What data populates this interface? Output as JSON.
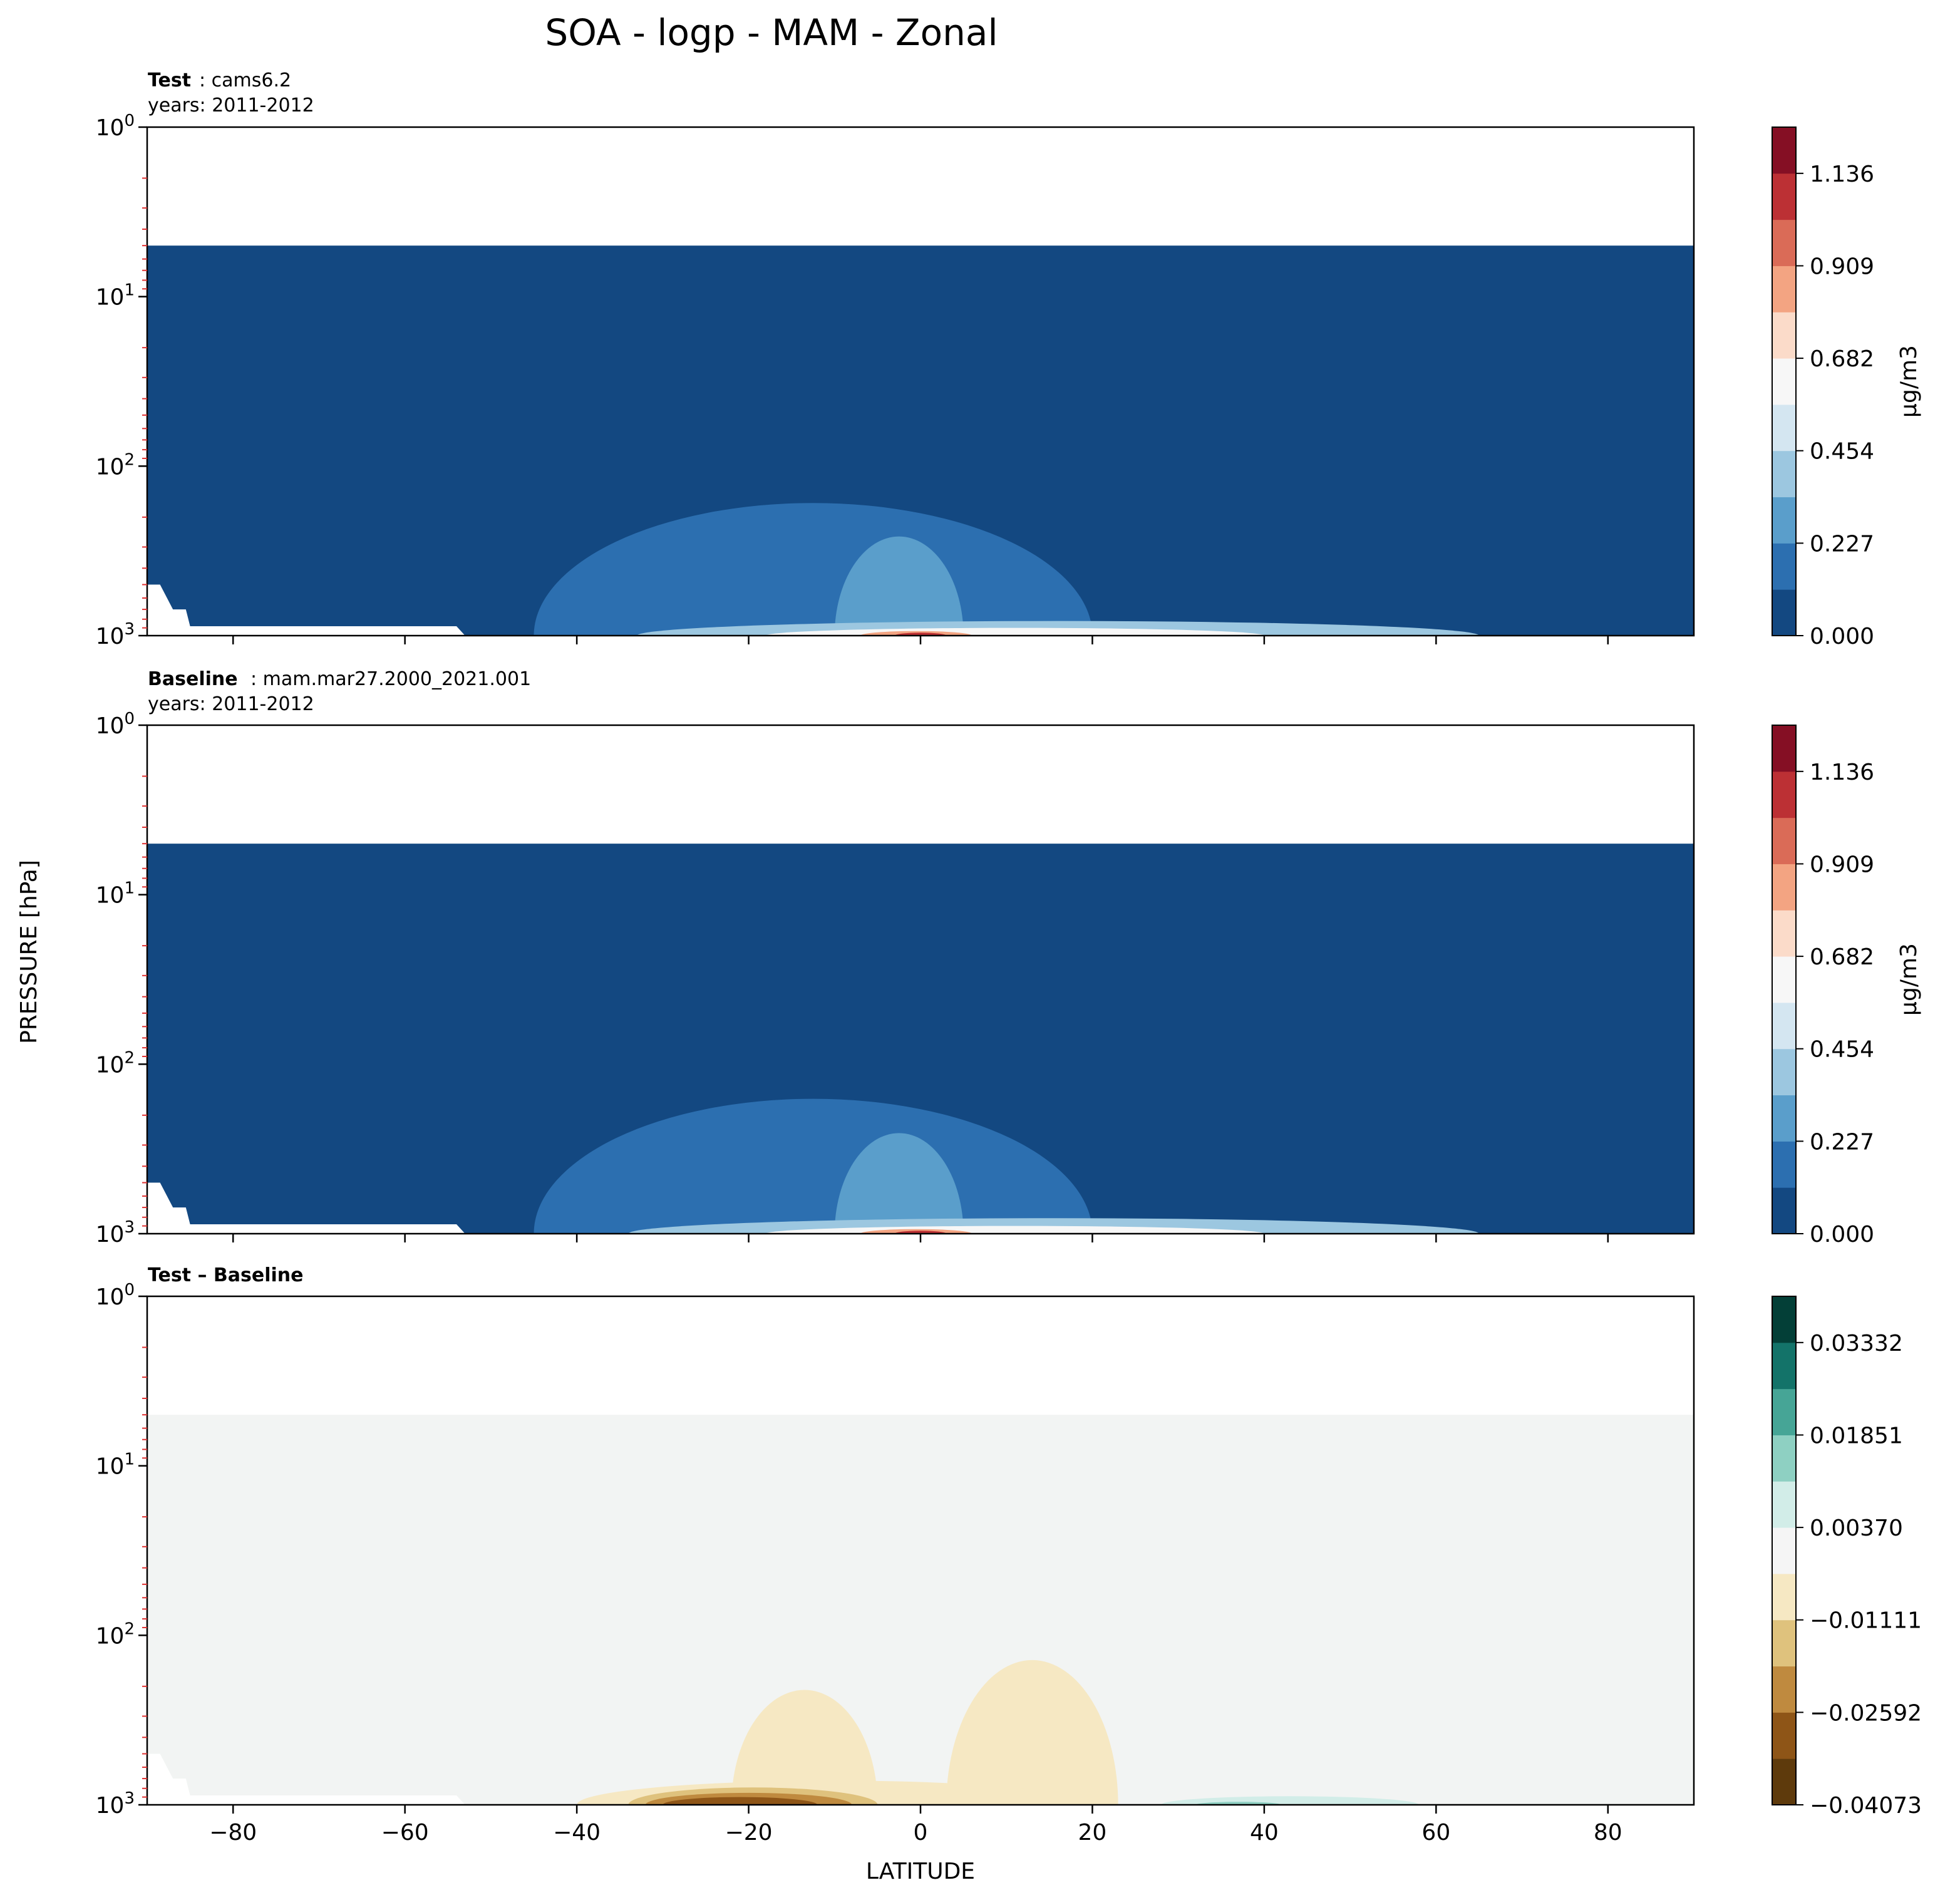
{
  "figure": {
    "title": "SOA - logp - MAM - Zonal",
    "ylabel": "PRESSURE [hPa]",
    "xlabel": "LATITUDE"
  },
  "chart_data": [
    {
      "type": "heatmap",
      "panel": "test",
      "title_bold": "Test",
      "title_rest": ": cams6.2",
      "subtitle": "years: 2011-2012",
      "xlim": [
        -90,
        90
      ],
      "ylim": [
        1000,
        1
      ],
      "yscale": "log",
      "y_tick_labels": [
        "10^0",
        "10^1",
        "10^2",
        "10^3"
      ],
      "x_ticks": [
        -80,
        -60,
        -40,
        -20,
        0,
        20,
        40,
        60,
        80
      ],
      "x_tick_labels_shown": false,
      "data_top_hPa": 5,
      "colorbar": {
        "label": "μg/m3",
        "ticks": [
          "0.000",
          "0.227",
          "0.454",
          "0.682",
          "0.909",
          "1.136"
        ],
        "colors": [
          "#134881",
          "#2c6fb0",
          "#5a9ecb",
          "#9cc7e0",
          "#d4e6f1",
          "#f7f7f7",
          "#fbdbc9",
          "#f3a482",
          "#da6b57",
          "#bc3034",
          "#850f24"
        ]
      },
      "regions": [
        {
          "level": 1,
          "lat_range": [
            -45,
            20
          ],
          "top_hPa": 165,
          "note": "broad plume"
        },
        {
          "level": 2,
          "lat_range": [
            -10,
            5
          ],
          "top_hPa": 260
        },
        {
          "level": 3,
          "lat_range": [
            -33,
            65
          ],
          "top_hPa": 820
        },
        {
          "level": 5,
          "lat_range": [
            -18,
            40
          ],
          "top_hPa": 900
        },
        {
          "level": 7,
          "lat_range": [
            -7,
            6
          ],
          "top_hPa": 940
        },
        {
          "level": 9,
          "lat_range": [
            -3,
            3
          ],
          "top_hPa": 960,
          "note": "peak ~1.1 near equator"
        }
      ]
    },
    {
      "type": "heatmap",
      "panel": "baseline",
      "title_bold": "Baseline",
      "title_rest": ": mam.mar27.2000_2021.001",
      "subtitle": "years: 2011-2012",
      "xlim": [
        -90,
        90
      ],
      "ylim": [
        1000,
        1
      ],
      "yscale": "log",
      "y_tick_labels": [
        "10^0",
        "10^1",
        "10^2",
        "10^3"
      ],
      "x_ticks": [
        -80,
        -60,
        -40,
        -20,
        0,
        20,
        40,
        60,
        80
      ],
      "x_tick_labels_shown": false,
      "data_top_hPa": 5,
      "colorbar": {
        "label": "μg/m3",
        "ticks": [
          "0.000",
          "0.227",
          "0.454",
          "0.682",
          "0.909",
          "1.136"
        ],
        "colors": [
          "#134881",
          "#2c6fb0",
          "#5a9ecb",
          "#9cc7e0",
          "#d4e6f1",
          "#f7f7f7",
          "#fbdbc9",
          "#f3a482",
          "#da6b57",
          "#bc3034",
          "#850f24"
        ]
      },
      "regions": [
        {
          "level": 1,
          "lat_range": [
            -45,
            20
          ],
          "top_hPa": 160
        },
        {
          "level": 2,
          "lat_range": [
            -10,
            5
          ],
          "top_hPa": 255
        },
        {
          "level": 3,
          "lat_range": [
            -34,
            65
          ],
          "top_hPa": 810
        },
        {
          "level": 5,
          "lat_range": [
            -18,
            40
          ],
          "top_hPa": 900
        },
        {
          "level": 7,
          "lat_range": [
            -7,
            6
          ],
          "top_hPa": 940
        },
        {
          "level": 9,
          "lat_range": [
            -3,
            3
          ],
          "top_hPa": 960
        }
      ]
    },
    {
      "type": "heatmap",
      "panel": "difference",
      "title_bold": "Test – Baseline",
      "xlim": [
        -90,
        90
      ],
      "ylim": [
        1000,
        1
      ],
      "yscale": "log",
      "y_tick_labels": [
        "10^0",
        "10^1",
        "10^2",
        "10^3"
      ],
      "x_ticks": [
        -80,
        -60,
        -40,
        -20,
        0,
        20,
        40,
        60,
        80
      ],
      "x_tick_labels": [
        "−80",
        "−60",
        "−40",
        "−20",
        "0",
        "20",
        "40",
        "60",
        "80"
      ],
      "data_top_hPa": 5,
      "background_color": "#f2f4f3",
      "colorbar": {
        "label": "",
        "ticks": [
          "−0.04073",
          "−0.02592",
          "−0.01111",
          "0.00370",
          "0.01851",
          "0.03332"
        ],
        "colors": [
          "#5e3a0c",
          "#8e5517",
          "#bf8a3f",
          "#dfc27d",
          "#f6e8c3",
          "#f5f5f5",
          "#d2ede8",
          "#8ed0c2",
          "#46a596",
          "#137369",
          "#033f37"
        ]
      },
      "regions": [
        {
          "level": -1,
          "lat_range": [
            -22,
            -5
          ],
          "top_hPa": 210,
          "note": "weak negative blob"
        },
        {
          "level": -1,
          "lat_range": [
            3,
            23
          ],
          "top_hPa": 140,
          "note": "weak negative blob"
        },
        {
          "level": -1,
          "lat_range": [
            -40,
            20
          ],
          "top_hPa": 720
        },
        {
          "level": -2,
          "lat_range": [
            -34,
            -5
          ],
          "top_hPa": 790
        },
        {
          "level": -3,
          "lat_range": [
            -32,
            -8
          ],
          "top_hPa": 850
        },
        {
          "level": -4,
          "lat_range": [
            -30,
            -12
          ],
          "top_hPa": 900,
          "note": "min ~−0.04"
        },
        {
          "level": 1,
          "lat_range": [
            28,
            58
          ],
          "top_hPa": 890,
          "note": "weak positive near surface"
        },
        {
          "level": 2,
          "lat_range": [
            32,
            42
          ],
          "top_hPa": 960
        }
      ]
    }
  ]
}
